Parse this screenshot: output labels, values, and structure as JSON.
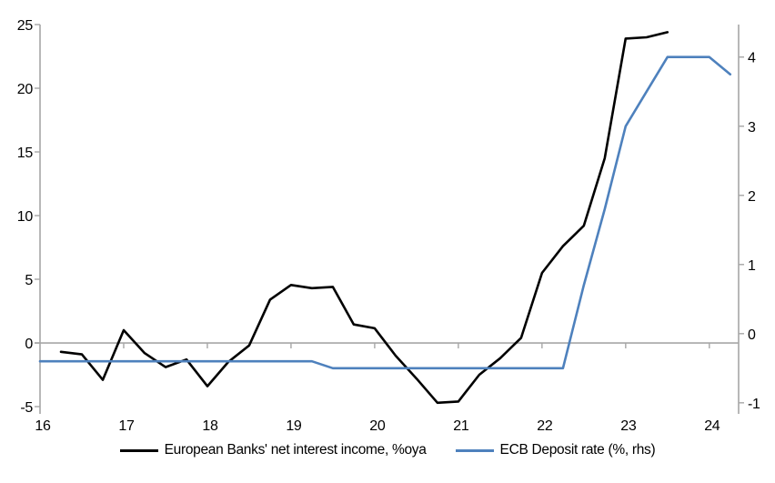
{
  "chart_data": {
    "type": "line",
    "title": "",
    "xlabel": "",
    "ylabel_left": "",
    "ylabel_right": "",
    "grid": false,
    "legend_position": "bottom",
    "axes": {
      "x": {
        "min": 16,
        "max": 24.35,
        "ticks": [
          16,
          17,
          18,
          19,
          20,
          21,
          22,
          23,
          24
        ]
      },
      "left": {
        "min": -5.57,
        "max": 25.0,
        "ticks": [
          -5,
          0,
          5,
          10,
          15,
          20,
          25
        ]
      },
      "right": {
        "min": -1.16,
        "max": 4.47,
        "ticks": [
          -1,
          0,
          1,
          2,
          3,
          4
        ]
      }
    },
    "zero_line_value": 0,
    "series": [
      {
        "name": "European Banks' net interest income, %oya",
        "axis": "left",
        "color": "#000000",
        "x": [
          16.25,
          16.5,
          16.75,
          17.0,
          17.25,
          17.5,
          17.75,
          18.0,
          18.25,
          18.5,
          18.75,
          19.0,
          19.25,
          19.5,
          19.75,
          20.0,
          20.25,
          20.5,
          20.75,
          21.0,
          21.25,
          21.5,
          21.75,
          22.0,
          22.25,
          22.5,
          22.75,
          23.0,
          23.25,
          23.5
        ],
        "values": [
          -0.7,
          -0.9,
          -2.9,
          1.0,
          -0.8,
          -1.9,
          -1.3,
          -3.4,
          -1.5,
          -0.2,
          3.4,
          4.55,
          4.3,
          4.4,
          1.45,
          1.15,
          -1.0,
          -2.8,
          -4.7,
          -4.6,
          -2.5,
          -1.2,
          0.4,
          5.5,
          7.6,
          9.2,
          14.5,
          23.9,
          24.0,
          24.4
        ]
      },
      {
        "name": "ECB Deposit rate (%, rhs)",
        "axis": "right",
        "color": "#4E81BD",
        "x": [
          16.0,
          16.25,
          16.5,
          16.75,
          17.0,
          17.25,
          17.5,
          17.75,
          18.0,
          18.25,
          18.5,
          18.75,
          19.0,
          19.25,
          19.5,
          19.75,
          20.0,
          20.25,
          20.5,
          20.75,
          21.0,
          21.25,
          21.5,
          21.75,
          22.0,
          22.25,
          22.5,
          22.75,
          23.0,
          23.25,
          23.5,
          23.75,
          24.0,
          24.25
        ],
        "values": [
          -0.4,
          -0.4,
          -0.4,
          -0.4,
          -0.4,
          -0.4,
          -0.4,
          -0.4,
          -0.4,
          -0.4,
          -0.4,
          -0.4,
          -0.4,
          -0.4,
          -0.5,
          -0.5,
          -0.5,
          -0.5,
          -0.5,
          -0.5,
          -0.5,
          -0.5,
          -0.5,
          -0.5,
          -0.5,
          -0.5,
          0.7,
          1.8,
          3.0,
          3.5,
          4.0,
          4.0,
          4.0,
          3.75
        ]
      }
    ]
  },
  "colors": {
    "axis_line": "#A6A6A6",
    "zero_line": "#A6A6A6",
    "tick_text": "#000000"
  }
}
